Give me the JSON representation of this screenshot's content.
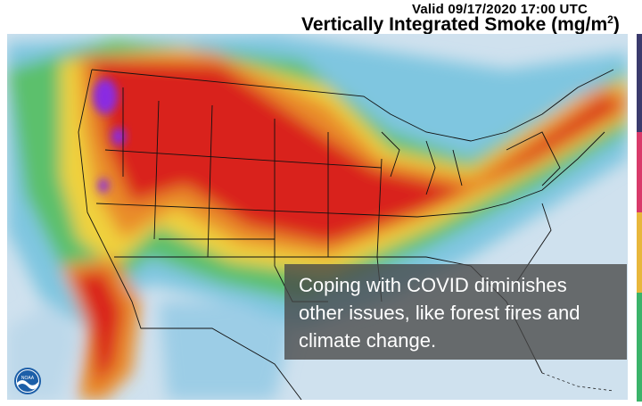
{
  "header": {
    "valid_text": "Valid 09/17/2020 17:00 UTC",
    "title_text": "Vertically Integrated Smoke (mg/m",
    "title_sup": "2",
    "title_close": ")"
  },
  "caption": {
    "text": "Coping with COVID diminishes other issues, like forest fires and climate change."
  },
  "logo": {
    "text": "NOAA",
    "icon": "noaa-logo-icon"
  },
  "colors": {
    "low": "#b9d6ea",
    "medium_low": "#5fb4d8",
    "medium": "#4fbf5a",
    "high": "#f2d23a",
    "very_high": "#e98c2c",
    "extreme": "#d9241e",
    "max": "#8a2be2",
    "caption_bg": "#484848",
    "accent_edge": "#d93a6a"
  }
}
